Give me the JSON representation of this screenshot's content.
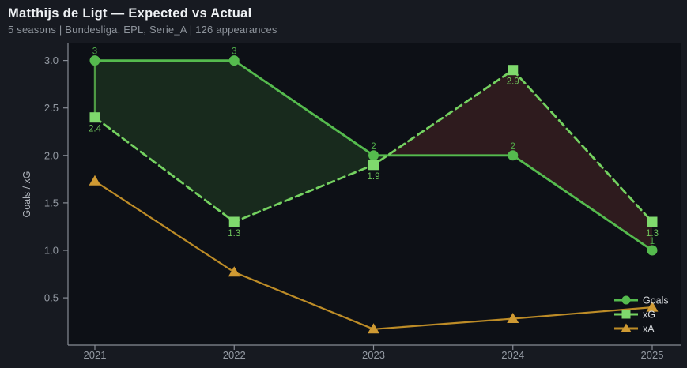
{
  "header": {
    "title": "Matthijs de Ligt — Expected vs Actual",
    "subtitle": "5 seasons | Bundesliga, EPL, Serie_A | 126 appearances"
  },
  "chart_data": {
    "type": "line",
    "x": [
      "2021",
      "2022",
      "2023",
      "2024",
      "2025"
    ],
    "ylabel": "Goals / xG",
    "yticks": [
      0.5,
      1.0,
      1.5,
      2.0,
      2.5,
      3.0
    ],
    "ylim": [
      0.01,
      3.18
    ],
    "grid": false,
    "series": [
      {
        "name": "Goals",
        "values": [
          3,
          3,
          2,
          2,
          1
        ],
        "color": "#55bb4e",
        "marker": "circle",
        "line": "solid",
        "point_labels": "above"
      },
      {
        "name": "xG",
        "values": [
          2.4,
          1.3,
          1.9,
          2.9,
          1.3
        ],
        "color": "#74d160",
        "marker_color": "#7fd96d",
        "marker": "square",
        "line": "dashed",
        "point_labels": "below"
      },
      {
        "name": "xA",
        "values": [
          1.73,
          0.77,
          0.17,
          0.28,
          0.4
        ],
        "color": "#bd8c27",
        "marker_color": "#cf9a33",
        "marker": "triangle",
        "line": "solid",
        "point_labels": "none"
      }
    ],
    "fill_between": {
      "a": "Goals",
      "b": "xG",
      "above_color": "#182a1d",
      "below_color": "#2e1b1e",
      "edge_color": "#4e9a44"
    },
    "legend": {
      "position": "lower-right",
      "entries": [
        "Goals",
        "xG",
        "xA"
      ]
    }
  },
  "colors": {
    "page_bg": "#171a21",
    "plot_bg": "#0d1016",
    "spine": "#878c95",
    "tick_label": "#949aa3",
    "axis_label": "#b0b5bd",
    "legend_text": "#d3d6da",
    "title": "#eef1f4",
    "subtitle": "#8d939b"
  }
}
